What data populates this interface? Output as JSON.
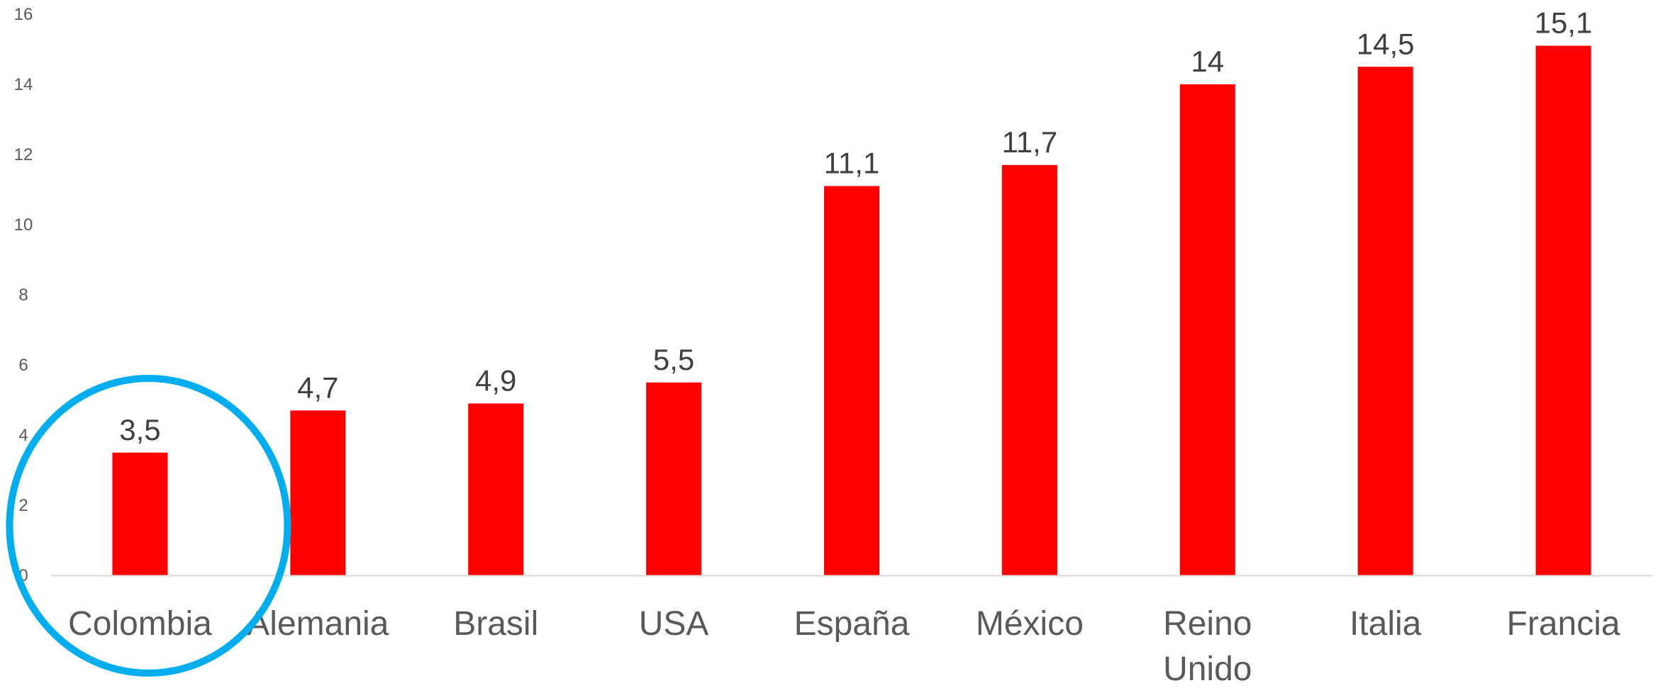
{
  "chart_data": {
    "type": "bar",
    "categories": [
      "Colombia",
      "Alemania",
      "Brasil",
      "USA",
      "España",
      "México",
      "Reino Unido",
      "Italia",
      "Francia"
    ],
    "category_lines": [
      [
        "Colombia"
      ],
      [
        "Alemania"
      ],
      [
        "Brasil"
      ],
      [
        "USA"
      ],
      [
        "España"
      ],
      [
        "México"
      ],
      [
        "Reino",
        "Unido"
      ],
      [
        "Italia"
      ],
      [
        "Francia"
      ]
    ],
    "values": [
      3.5,
      4.7,
      4.9,
      5.5,
      11.1,
      11.7,
      14,
      14.5,
      15.1
    ],
    "data_labels": [
      "3,5",
      "4,7",
      "4,9",
      "5,5",
      "11,1",
      "11,7",
      "14",
      "14,5",
      "15,1"
    ],
    "yticks": [
      0,
      2,
      4,
      6,
      8,
      10,
      12,
      14,
      16
    ],
    "ylim": [
      0,
      16
    ],
    "grid": false,
    "title": "",
    "xlabel": "",
    "ylabel": "",
    "bar_color": "#ff0000",
    "highlight": {
      "category": "Colombia",
      "shape": "circle",
      "color": "#00aeef"
    }
  }
}
